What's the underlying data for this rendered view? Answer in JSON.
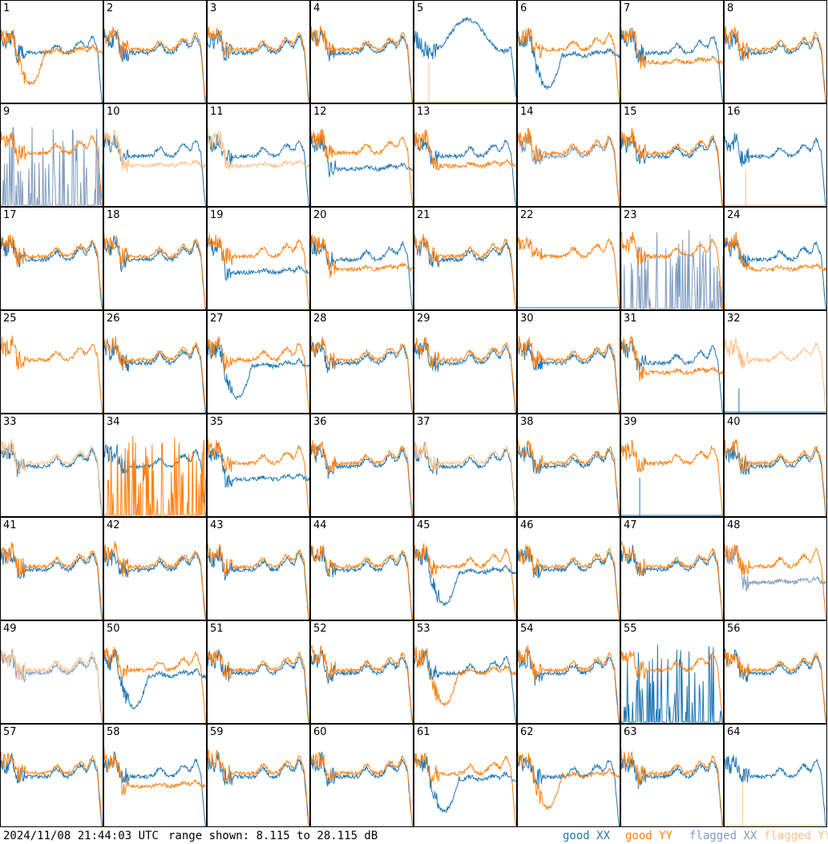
{
  "colors": {
    "good_xx": "#1f77b4",
    "good_yy": "#ff7f0e",
    "flagged_xx": "#7f9cbf",
    "flagged_yy": "#ffc08a",
    "panel_border": "#000000"
  },
  "footer": {
    "timestamp": "2024/11/08 21:44:03 UTC",
    "range": "range shown: 8.115 to 28.115 dB",
    "legend_good_xx": "good XX",
    "legend_good_yy": "good YY",
    "legend_flagged_xx": "flagged XX",
    "legend_flagged_yy": "flagged YY"
  },
  "chart_data": {
    "type": "line",
    "grid": "8x8 small multiples",
    "y_range_db": [
      8.115,
      28.115
    ],
    "series_names": [
      "good XX",
      "good YY",
      "flagged XX",
      "flagged YY"
    ],
    "panels": [
      {
        "id": 1,
        "xx": "good",
        "yy": "good",
        "xx_shape": "normal",
        "yy_shape": "dip"
      },
      {
        "id": 2,
        "xx": "good",
        "yy": "good",
        "xx_shape": "normal",
        "yy_shape": "normal"
      },
      {
        "id": 3,
        "xx": "good",
        "yy": "good",
        "xx_shape": "normal",
        "yy_shape": "normal"
      },
      {
        "id": 4,
        "xx": "good",
        "yy": "good",
        "xx_shape": "normal",
        "yy_shape": "normal"
      },
      {
        "id": 5,
        "xx": "good",
        "yy": "flagged",
        "xx_shape": "wave",
        "yy_shape": "spike"
      },
      {
        "id": 6,
        "xx": "good",
        "yy": "good",
        "xx_shape": "dip",
        "yy_shape": "normal"
      },
      {
        "id": 7,
        "xx": "good",
        "yy": "good",
        "xx_shape": "normal",
        "yy_shape": "low"
      },
      {
        "id": 8,
        "xx": "good",
        "yy": "good",
        "xx_shape": "normal",
        "yy_shape": "normal"
      },
      {
        "id": 9,
        "xx": "flagged",
        "yy": "good",
        "xx_shape": "bursts",
        "yy_shape": "normal"
      },
      {
        "id": 10,
        "xx": "good",
        "yy": "flagged",
        "xx_shape": "normal",
        "yy_shape": "low"
      },
      {
        "id": 11,
        "xx": "good",
        "yy": "flagged",
        "xx_shape": "normal",
        "yy_shape": "low"
      },
      {
        "id": 12,
        "xx": "good",
        "yy": "good",
        "xx_shape": "low",
        "yy_shape": "normal"
      },
      {
        "id": 13,
        "xx": "good",
        "yy": "good",
        "xx_shape": "normal",
        "yy_shape": "low"
      },
      {
        "id": 14,
        "xx": "flagged",
        "yy": "good",
        "xx_shape": "normal",
        "yy_shape": "normal"
      },
      {
        "id": 15,
        "xx": "good",
        "yy": "good",
        "xx_shape": "normal",
        "yy_shape": "normal"
      },
      {
        "id": 16,
        "xx": "good",
        "yy": "flagged",
        "xx_shape": "normal",
        "yy_shape": "spike"
      },
      {
        "id": 17,
        "xx": "good",
        "yy": "good",
        "xx_shape": "normal",
        "yy_shape": "normal"
      },
      {
        "id": 18,
        "xx": "good",
        "yy": "good",
        "xx_shape": "normal",
        "yy_shape": "normal"
      },
      {
        "id": 19,
        "xx": "good",
        "yy": "good",
        "xx_shape": "low",
        "yy_shape": "normal"
      },
      {
        "id": 20,
        "xx": "good",
        "yy": "good",
        "xx_shape": "normal",
        "yy_shape": "low"
      },
      {
        "id": 21,
        "xx": "good",
        "yy": "good",
        "xx_shape": "normal",
        "yy_shape": "normal"
      },
      {
        "id": 22,
        "xx": "good",
        "yy": "good",
        "xx_shape": "flat",
        "yy_shape": "normal"
      },
      {
        "id": 23,
        "xx": "flagged",
        "yy": "good",
        "xx_shape": "bursts",
        "yy_shape": "normal"
      },
      {
        "id": 24,
        "xx": "good",
        "yy": "good",
        "xx_shape": "normal",
        "yy_shape": "low"
      },
      {
        "id": 25,
        "xx": "none",
        "yy": "good",
        "xx_shape": "none",
        "yy_shape": "normal"
      },
      {
        "id": 26,
        "xx": "good",
        "yy": "good",
        "xx_shape": "normal",
        "yy_shape": "normal"
      },
      {
        "id": 27,
        "xx": "good",
        "yy": "good",
        "xx_shape": "dip",
        "yy_shape": "normal"
      },
      {
        "id": 28,
        "xx": "good",
        "yy": "good",
        "xx_shape": "normal",
        "yy_shape": "normal"
      },
      {
        "id": 29,
        "xx": "good",
        "yy": "good",
        "xx_shape": "normal",
        "yy_shape": "normal"
      },
      {
        "id": 30,
        "xx": "good",
        "yy": "good",
        "xx_shape": "normal",
        "yy_shape": "normal"
      },
      {
        "id": 31,
        "xx": "good",
        "yy": "good",
        "xx_shape": "normal",
        "yy_shape": "low"
      },
      {
        "id": 32,
        "xx": "good",
        "yy": "flagged",
        "xx_shape": "spike",
        "yy_shape": "normal"
      },
      {
        "id": 33,
        "xx": "good",
        "yy": "flagged",
        "xx_shape": "normal",
        "yy_shape": "normal"
      },
      {
        "id": 34,
        "xx": "good",
        "yy": "good",
        "xx_shape": "normal",
        "yy_shape": "bursts"
      },
      {
        "id": 35,
        "xx": "good",
        "yy": "good",
        "xx_shape": "low",
        "yy_shape": "normal"
      },
      {
        "id": 36,
        "xx": "good",
        "yy": "good",
        "xx_shape": "normal",
        "yy_shape": "normal"
      },
      {
        "id": 37,
        "xx": "good",
        "yy": "flagged",
        "xx_shape": "normal",
        "yy_shape": "normal"
      },
      {
        "id": 38,
        "xx": "good",
        "yy": "good",
        "xx_shape": "normal",
        "yy_shape": "normal"
      },
      {
        "id": 39,
        "xx": "good",
        "yy": "good",
        "xx_shape": "spike",
        "yy_shape": "normal"
      },
      {
        "id": 40,
        "xx": "good",
        "yy": "good",
        "xx_shape": "normal",
        "yy_shape": "normal"
      },
      {
        "id": 41,
        "xx": "good",
        "yy": "good",
        "xx_shape": "normal",
        "yy_shape": "normal"
      },
      {
        "id": 42,
        "xx": "good",
        "yy": "good",
        "xx_shape": "normal",
        "yy_shape": "normal"
      },
      {
        "id": 43,
        "xx": "good",
        "yy": "good",
        "xx_shape": "normal",
        "yy_shape": "normal"
      },
      {
        "id": 44,
        "xx": "good",
        "yy": "good",
        "xx_shape": "normal",
        "yy_shape": "normal"
      },
      {
        "id": 45,
        "xx": "good",
        "yy": "good",
        "xx_shape": "dip",
        "yy_shape": "normal"
      },
      {
        "id": 46,
        "xx": "good",
        "yy": "good",
        "xx_shape": "normal",
        "yy_shape": "normal"
      },
      {
        "id": 47,
        "xx": "good",
        "yy": "good",
        "xx_shape": "normal",
        "yy_shape": "normal"
      },
      {
        "id": 48,
        "xx": "flagged",
        "yy": "good",
        "xx_shape": "low",
        "yy_shape": "normal"
      },
      {
        "id": 49,
        "xx": "flagged",
        "yy": "flagged",
        "xx_shape": "normal",
        "yy_shape": "normal"
      },
      {
        "id": 50,
        "xx": "good",
        "yy": "good",
        "xx_shape": "dip",
        "yy_shape": "normal"
      },
      {
        "id": 51,
        "xx": "good",
        "yy": "good",
        "xx_shape": "normal",
        "yy_shape": "normal"
      },
      {
        "id": 52,
        "xx": "good",
        "yy": "good",
        "xx_shape": "normal",
        "yy_shape": "normal"
      },
      {
        "id": 53,
        "xx": "good",
        "yy": "good",
        "xx_shape": "normal",
        "yy_shape": "dip"
      },
      {
        "id": 54,
        "xx": "good",
        "yy": "good",
        "xx_shape": "normal",
        "yy_shape": "normal"
      },
      {
        "id": 55,
        "xx": "good",
        "yy": "good",
        "xx_shape": "bursts",
        "yy_shape": "normal"
      },
      {
        "id": 56,
        "xx": "good",
        "yy": "good",
        "xx_shape": "normal",
        "yy_shape": "normal"
      },
      {
        "id": 57,
        "xx": "good",
        "yy": "good",
        "xx_shape": "normal",
        "yy_shape": "normal"
      },
      {
        "id": 58,
        "xx": "good",
        "yy": "good",
        "xx_shape": "normal",
        "yy_shape": "low"
      },
      {
        "id": 59,
        "xx": "good",
        "yy": "good",
        "xx_shape": "normal",
        "yy_shape": "normal"
      },
      {
        "id": 60,
        "xx": "good",
        "yy": "good",
        "xx_shape": "normal",
        "yy_shape": "normal"
      },
      {
        "id": 61,
        "xx": "good",
        "yy": "good",
        "xx_shape": "dip",
        "yy_shape": "normal"
      },
      {
        "id": 62,
        "xx": "good",
        "yy": "good",
        "xx_shape": "normal",
        "yy_shape": "dip"
      },
      {
        "id": 63,
        "xx": "good",
        "yy": "good",
        "xx_shape": "normal",
        "yy_shape": "normal"
      },
      {
        "id": 64,
        "xx": "good",
        "yy": "flagged",
        "xx_shape": "normal",
        "yy_shape": "spike"
      }
    ]
  }
}
